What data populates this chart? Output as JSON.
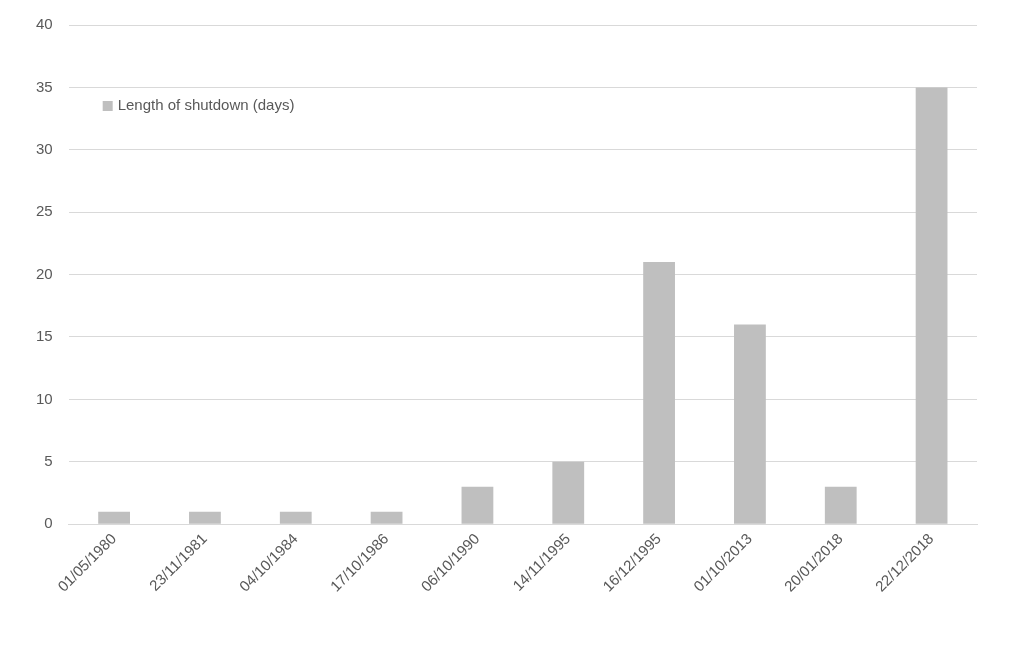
{
  "chart_data": {
    "type": "bar",
    "categories": [
      "01/05/1980",
      "23/11/1981",
      "04/10/1984",
      "17/10/1986",
      "06/10/1990",
      "14/11/1995",
      "16/12/1995",
      "01/10/2013",
      "20/01/2018",
      "22/12/2018"
    ],
    "series": [
      {
        "name": "Length of shutdown (days)",
        "color": "#bfbfbf",
        "values": [
          1,
          1,
          1,
          1,
          3,
          5,
          21,
          16,
          3,
          35
        ]
      }
    ],
    "ylim": [
      0,
      40
    ],
    "yticks": [
      0,
      5,
      10,
      15,
      20,
      25,
      30,
      35,
      40
    ],
    "grid": "y",
    "legend": "top left"
  }
}
